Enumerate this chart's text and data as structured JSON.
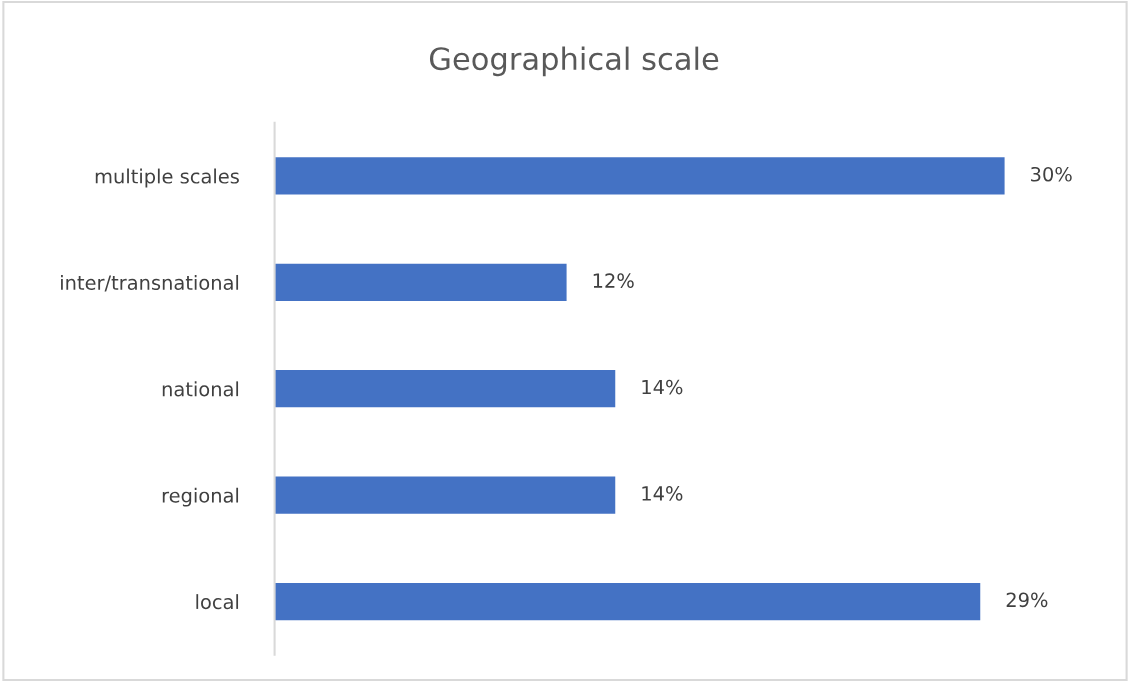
{
  "chart_data": {
    "type": "bar",
    "orientation": "horizontal",
    "title": "Geographical scale",
    "categories": [
      "multiple scales",
      "inter/transnational",
      "national",
      "regional",
      "local"
    ],
    "values": [
      30,
      12,
      14,
      14,
      29
    ],
    "value_labels": [
      "30%",
      "12%",
      "14%",
      "14%",
      "29%"
    ],
    "color": "#4472c4",
    "tick_labels": "y",
    "grid": false,
    "legend": false
  }
}
